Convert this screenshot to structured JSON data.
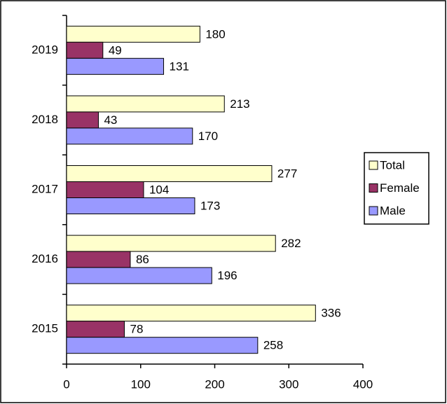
{
  "chart_data": {
    "type": "bar",
    "orientation": "horizontal",
    "categories": [
      "2015",
      "2016",
      "2017",
      "2018",
      "2019"
    ],
    "series": [
      {
        "name": "Total",
        "color": "#ffffcc",
        "values": [
          336,
          282,
          277,
          213,
          180
        ]
      },
      {
        "name": "Female",
        "color": "#993366",
        "values": [
          78,
          86,
          104,
          43,
          49
        ]
      },
      {
        "name": "Male",
        "color": "#9999ff",
        "values": [
          258,
          196,
          173,
          170,
          131
        ]
      }
    ],
    "xlim": [
      0,
      400
    ],
    "xticks": [
      0,
      100,
      200,
      300,
      400
    ],
    "legend": "right"
  }
}
